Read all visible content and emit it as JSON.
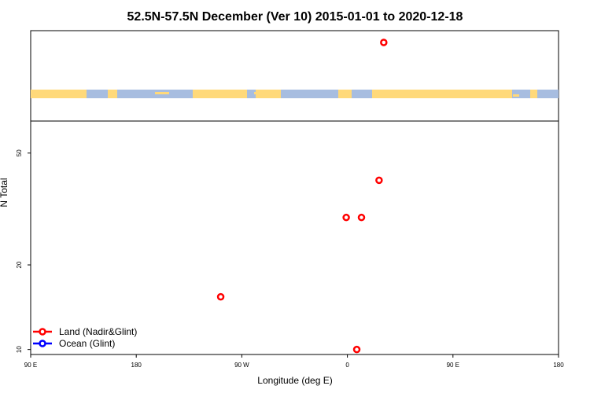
{
  "chart_data": {
    "type": "scatter",
    "title": "52.5N-57.5N December (Ver 10)   2015-01-01 to 2020-12-18",
    "xlabel": "Longitude (deg E)",
    "ylabel": "N Total",
    "x_tick_labels": [
      "90 E",
      "180",
      "90 W",
      "0",
      "90 E",
      "180"
    ],
    "x_tick_values": [
      90,
      180,
      270,
      360,
      450,
      540
    ],
    "xlim": [
      90,
      540
    ],
    "y_scale": "log",
    "y_tick_labels": [
      "10",
      "20",
      "50"
    ],
    "y_tick_values": [
      10,
      20,
      50
    ],
    "ylim": [
      9.6,
      65
    ],
    "series": [
      {
        "name": "Land (Nadir&Glint)",
        "color": "#ff0000",
        "points": [
          {
            "x": 252,
            "y": 15.4
          },
          {
            "x": 359,
            "y": 29.5
          },
          {
            "x": 372,
            "y": 29.5
          },
          {
            "x": 387,
            "y": 40.0
          },
          {
            "x": 368,
            "y": 10.0
          }
        ]
      },
      {
        "name": "Ocean (Glint)",
        "color": "#0000ff",
        "points": []
      }
    ],
    "outlier_points": [
      {
        "series": "Land (Nadir&Glint)",
        "x": 391
      }
    ],
    "land_color": "#ffd97a",
    "ocean_color": "#a7bde0",
    "legend_position": "bottom-left"
  }
}
